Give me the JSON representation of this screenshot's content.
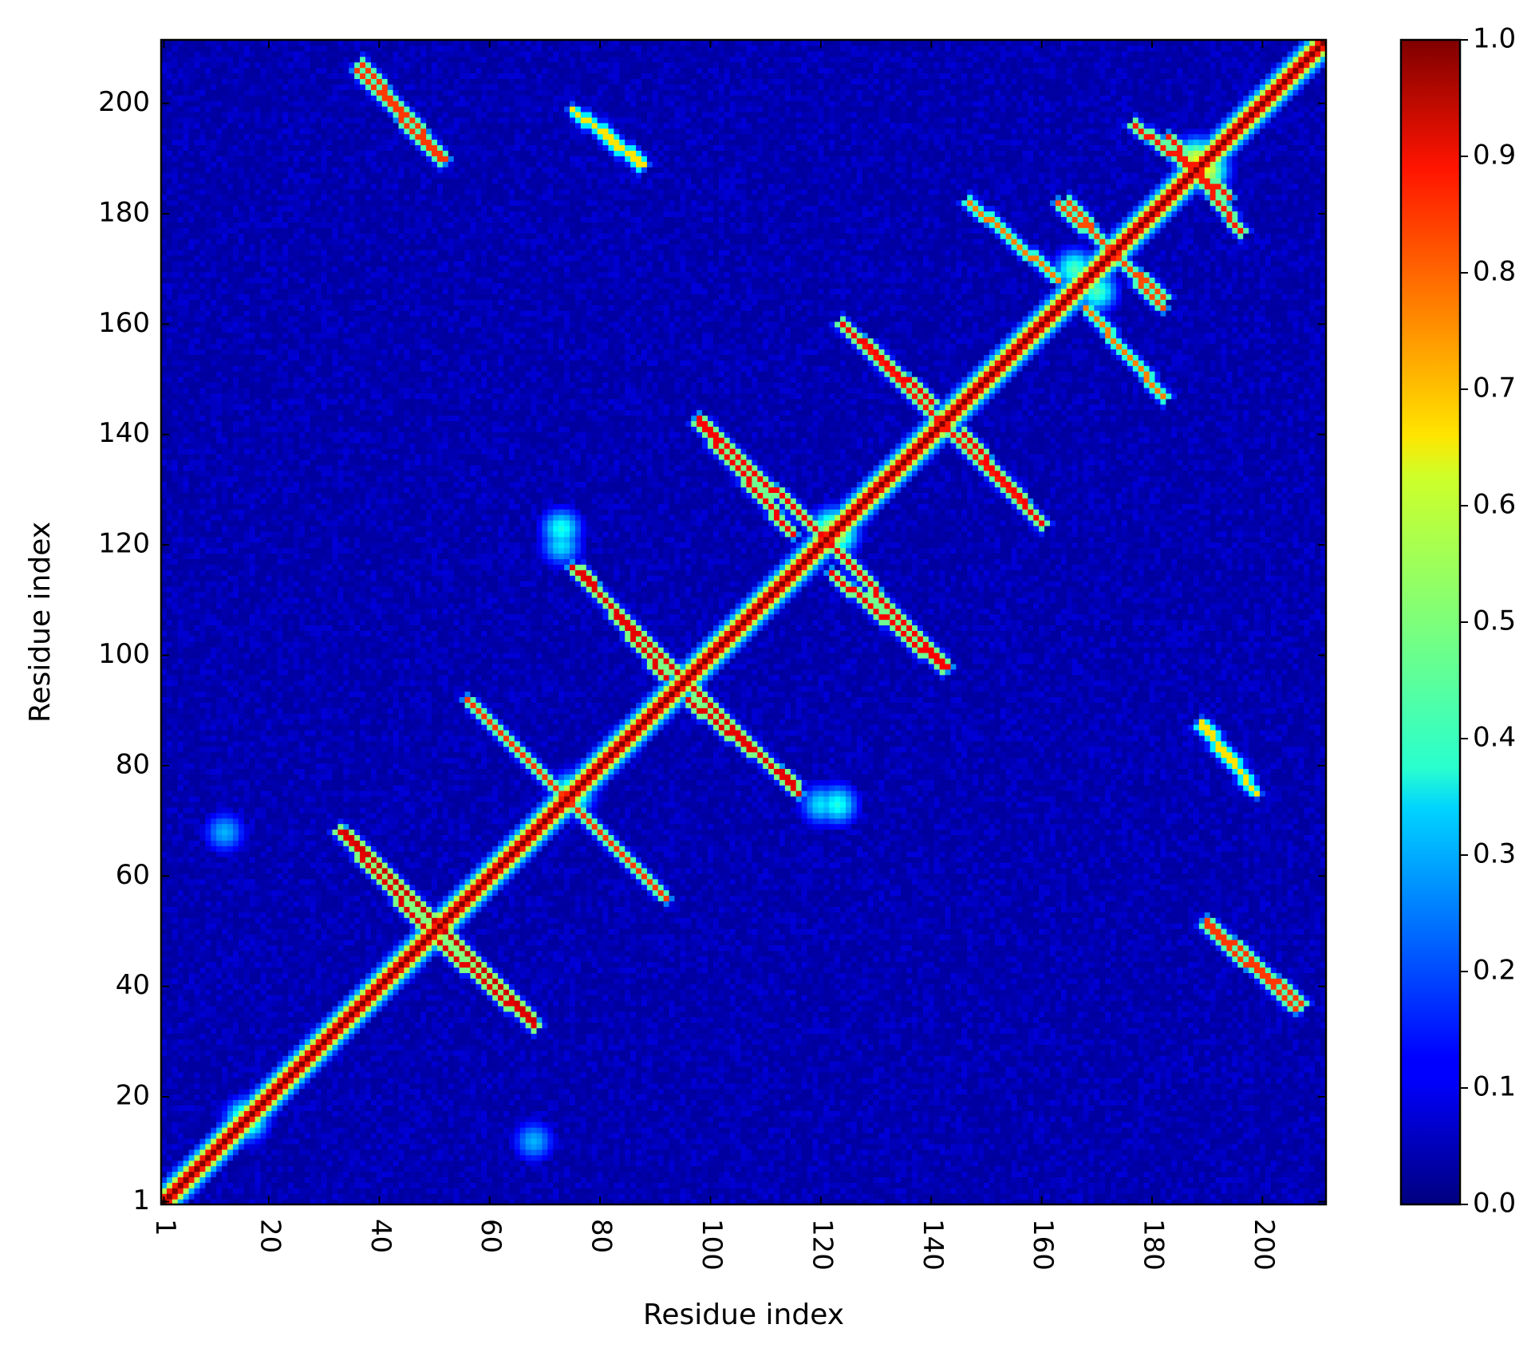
{
  "chart_data": {
    "type": "heatmap",
    "title": "",
    "xlabel": "Residue index",
    "ylabel": "Residue index",
    "x_range": [
      1,
      211
    ],
    "y_range": [
      1,
      211
    ],
    "x_ticks": [
      1,
      20,
      40,
      60,
      80,
      100,
      120,
      140,
      160,
      180,
      200
    ],
    "y_ticks": [
      1,
      20,
      40,
      60,
      80,
      100,
      120,
      140,
      160,
      180,
      200
    ],
    "x_tick_label_rotation": "rotated 90° clockwise (read top-to-bottom)",
    "colormap": "jet",
    "colorbar": {
      "position": "right",
      "range": [
        0.0,
        1.0
      ],
      "ticks": [
        "0.0",
        "0.1",
        "0.2",
        "0.3",
        "0.4",
        "0.5",
        "0.6",
        "0.7",
        "0.8",
        "0.9",
        "1.0"
      ]
    },
    "matrix_symmetric": true,
    "background_value": 0.03,
    "diagonal": {
      "from": 1,
      "to": 211,
      "value": 1.0
    },
    "contact_bands": [
      {
        "i": [
          34,
          50
        ],
        "j": [
          68,
          52
        ],
        "value": 0.92,
        "kind": "anti-parallel"
      },
      {
        "i": [
          51,
          68
        ],
        "j": [
          48,
          33
        ],
        "value": 0.9,
        "kind": "anti-parallel"
      },
      {
        "i": [
          56,
          88
        ],
        "j": [
          92,
          60
        ],
        "value": 0.82,
        "kind": "anti-parallel"
      },
      {
        "i": [
          75,
          94
        ],
        "j": [
          116,
          97
        ],
        "value": 0.9,
        "kind": "anti-parallel"
      },
      {
        "i": [
          96,
          115
        ],
        "j": [
          92,
          77
        ],
        "value": 0.9,
        "kind": "anti-parallel"
      },
      {
        "i": [
          98,
          125
        ],
        "j": [
          143,
          117
        ],
        "value": 0.88,
        "kind": "anti-parallel"
      },
      {
        "i": [
          122,
          142
        ],
        "j": [
          115,
          98
        ],
        "value": 0.88,
        "kind": "anti-parallel"
      },
      {
        "i": [
          124,
          140
        ],
        "j": [
          160,
          146
        ],
        "value": 0.88,
        "kind": "anti-parallel"
      },
      {
        "i": [
          139,
          160
        ],
        "j": [
          145,
          124
        ],
        "value": 0.85,
        "kind": "anti-parallel"
      },
      {
        "i": [
          163,
          182
        ],
        "j": [
          182,
          165
        ],
        "value": 0.8,
        "kind": "anti-parallel"
      },
      {
        "i": [
          168,
          182
        ],
        "j": [
          163,
          147
        ],
        "value": 0.75,
        "kind": "anti-parallel"
      },
      {
        "i": [
          183,
          196
        ],
        "j": [
          194,
          177
        ],
        "value": 0.85,
        "kind": "anti-parallel"
      },
      {
        "i": [
          36,
          51
        ],
        "j": [
          206,
          190
        ],
        "value": 0.82,
        "kind": "anti-parallel"
      },
      {
        "i": [
          75,
          87
        ],
        "j": [
          199,
          189
        ],
        "value": 0.65,
        "kind": "anti-parallel"
      },
      {
        "i": [
          190,
          207
        ],
        "j": [
          52,
          37
        ],
        "value": 0.82,
        "kind": "anti-parallel"
      },
      {
        "i": [
          189,
          197
        ],
        "j": [
          88,
          78
        ],
        "value": 0.65,
        "kind": "anti-parallel"
      }
    ],
    "hot_spots": [
      {
        "i": 73,
        "j": 123,
        "value": 0.4
      },
      {
        "i": 122,
        "j": 123,
        "value": 0.55
      },
      {
        "i": 170,
        "j": 166,
        "value": 0.45
      },
      {
        "i": 75,
        "j": 75,
        "value": 0.55
      },
      {
        "i": 120,
        "j": 73,
        "value": 0.35
      },
      {
        "i": 68,
        "j": 12,
        "value": 0.3
      },
      {
        "i": 12,
        "j": 68,
        "value": 0.3
      },
      {
        "i": 16,
        "j": 16,
        "value": 0.55
      },
      {
        "i": 190,
        "j": 188,
        "value": 0.6
      }
    ]
  }
}
